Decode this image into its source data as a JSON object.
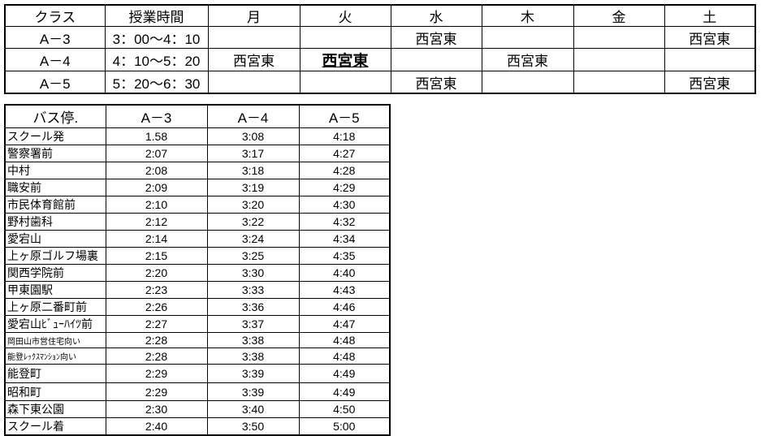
{
  "schedule": {
    "headers": [
      "クラス",
      "授業時間",
      "月",
      "火",
      "水",
      "木",
      "金",
      "土"
    ],
    "rows": [
      {
        "class": "A－3",
        "time": "3：00～4：10",
        "days": [
          null,
          null,
          "西宮東",
          null,
          null,
          "西宮東"
        ]
      },
      {
        "class": "A－4",
        "time": "4：10～5：20",
        "days": [
          "西宮東",
          "西宮東",
          null,
          "西宮東",
          null,
          null
        ]
      },
      {
        "class": "A－5",
        "time": "5：20～6：30",
        "days": [
          null,
          null,
          "西宮東",
          null,
          null,
          "西宮東"
        ]
      }
    ]
  },
  "bus": {
    "headers": [
      "バス停.",
      "A－3",
      "A－4",
      "A－5"
    ],
    "rows": [
      [
        "スクール発",
        "1.58",
        "3:08",
        "4:18"
      ],
      [
        "警察署前",
        "2:07",
        "3:17",
        "4:27"
      ],
      [
        "中村",
        "2:08",
        "3:18",
        "4:28"
      ],
      [
        "職安前",
        "2:09",
        "3:19",
        "4:29"
      ],
      [
        "市民体育館前",
        "2:10",
        "3:20",
        "4:30"
      ],
      [
        "野村歯科",
        "2:12",
        "3:22",
        "4:32"
      ],
      [
        "愛宕山",
        "2:14",
        "3:24",
        "4:34"
      ],
      [
        "上ヶ原ゴルフ場裏",
        "2:15",
        "3:25",
        "4:35"
      ],
      [
        "関西学院前",
        "2:20",
        "3:30",
        "4:40"
      ],
      [
        "甲東園駅",
        "2:23",
        "3:33",
        "4:43"
      ],
      [
        "上ヶ原二番町前",
        "2:26",
        "3:36",
        "4:46"
      ],
      [
        "愛宕山ﾋﾞｭｰﾊｲﾂ前",
        "2:27",
        "3:37",
        "4:47"
      ],
      [
        "岡田山市営住宅向い",
        "2:28",
        "3:38",
        "4:48"
      ],
      [
        "能登ﾚｯｸｽﾏﾝｼｮﾝ向い",
        "2:28",
        "3:38",
        "4:48"
      ],
      [
        "能登町",
        "2:29",
        "3:39",
        "4:49"
      ],
      [
        "昭和町",
        "2:29",
        "3:39",
        "4:49"
      ],
      [
        "森下東公園",
        "2:30",
        "3:40",
        "4:50"
      ],
      [
        "スクール着",
        "2:40",
        "3:50",
        "5:00"
      ]
    ]
  }
}
